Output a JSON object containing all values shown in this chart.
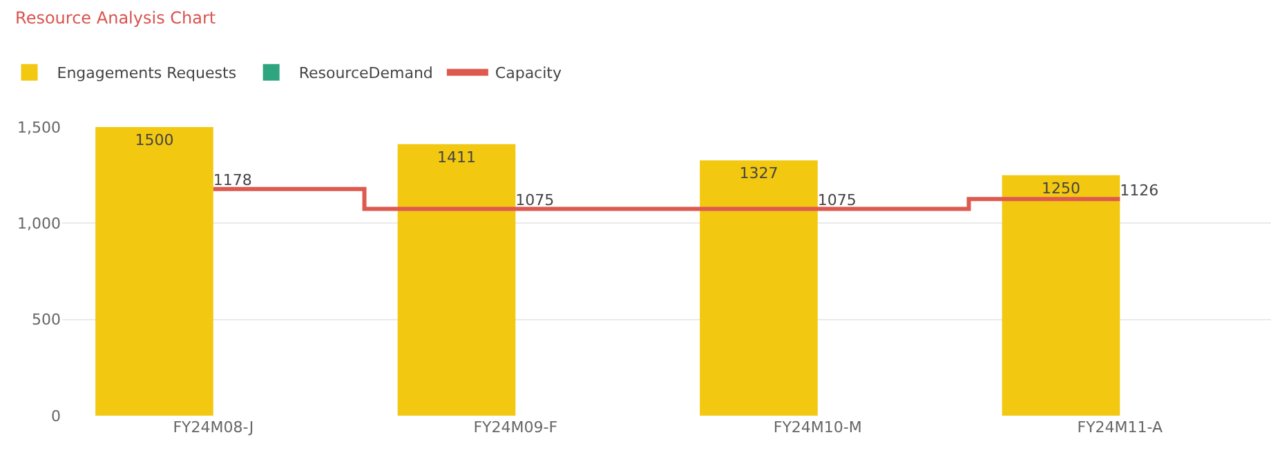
{
  "chart_data": {
    "type": "bar",
    "title": "Resource Analysis Chart",
    "categories": [
      "FY24M08-J",
      "FY24M09-F",
      "FY24M10-M",
      "FY24M11-A"
    ],
    "series": [
      {
        "name": "Engagements Requests",
        "color": "#f2c811",
        "values": [
          1500,
          1411,
          1327,
          1250
        ]
      },
      {
        "name": "ResourceDemand",
        "color": "#2ea47f",
        "values": [
          null,
          null,
          null,
          null
        ]
      },
      {
        "name": "Capacity",
        "type": "step",
        "color": "#de5a4f",
        "values": [
          1178,
          1075,
          1075,
          1126
        ]
      }
    ],
    "ylim": [
      0,
      1500
    ],
    "yticks": [
      0,
      500,
      {
        "value": 1000,
        "label": "1,000"
      },
      {
        "value": 1500,
        "label": "1,500"
      }
    ],
    "grid": "y",
    "legend": "top left",
    "data_labels": true,
    "marker": "none",
    "line_style": "solid"
  }
}
